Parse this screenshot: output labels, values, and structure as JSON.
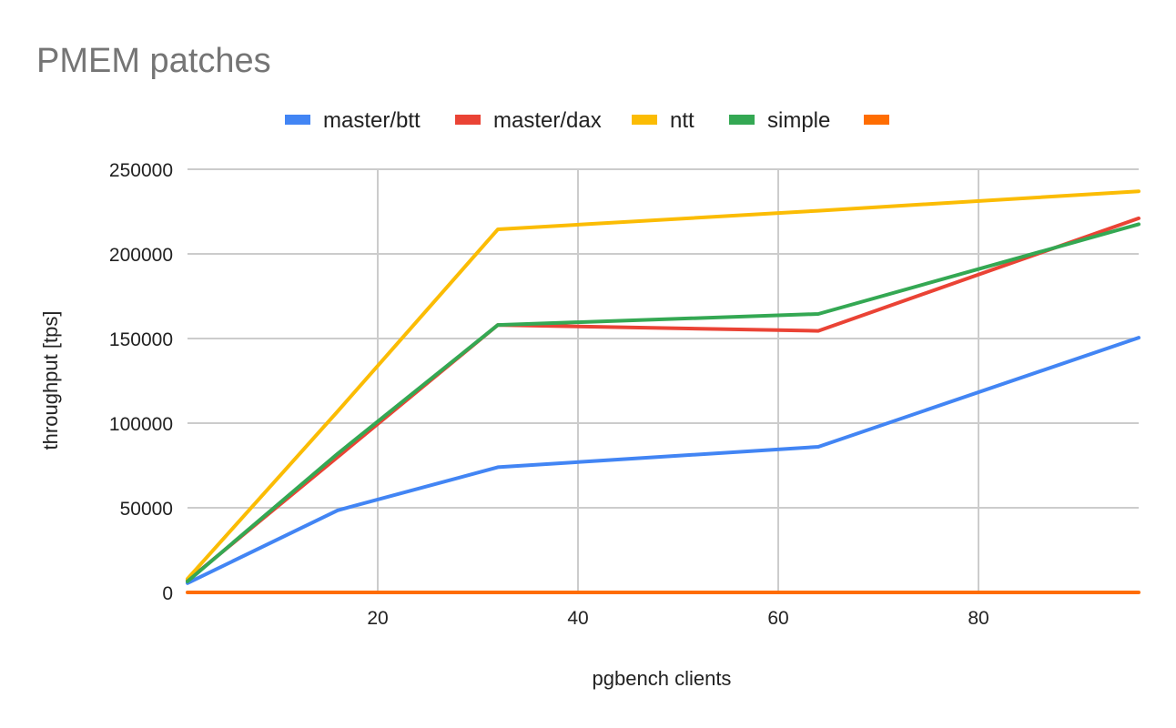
{
  "chart_data": {
    "type": "line",
    "title": "PMEM patches",
    "xlabel": "pgbench clients",
    "ylabel": "throughput [tps]",
    "xlim": [
      1,
      96
    ],
    "ylim": [
      0,
      250000
    ],
    "x_ticks": [
      "20",
      "40",
      "60",
      "80"
    ],
    "y_ticks": [
      "0",
      "50000",
      "100000",
      "150000",
      "200000",
      "250000"
    ],
    "grid": true,
    "legend_position": "top",
    "series": [
      {
        "name": "master/btt",
        "color": "#4285F4",
        "points": [
          [
            1,
            5500
          ],
          [
            16,
            48500
          ],
          [
            32,
            74000
          ],
          [
            64,
            86000
          ],
          [
            96,
            150500
          ]
        ]
      },
      {
        "name": "master/dax",
        "color": "#EA4335",
        "points": [
          [
            1,
            7000
          ],
          [
            16,
            80000
          ],
          [
            32,
            158000
          ],
          [
            64,
            154500
          ],
          [
            96,
            221000
          ]
        ]
      },
      {
        "name": "ntt",
        "color": "#FBBC04",
        "points": [
          [
            1,
            8000
          ],
          [
            16,
            107000
          ],
          [
            32,
            214500
          ],
          [
            64,
            225500
          ],
          [
            96,
            237000
          ]
        ]
      },
      {
        "name": "simple",
        "color": "#34A853",
        "points": [
          [
            1,
            6500
          ],
          [
            16,
            82000
          ],
          [
            32,
            158000
          ],
          [
            64,
            164500
          ],
          [
            96,
            217500
          ]
        ]
      },
      {
        "name": "",
        "color": "#FF6D01",
        "points": [
          [
            1,
            0
          ],
          [
            96,
            0
          ]
        ]
      }
    ]
  }
}
